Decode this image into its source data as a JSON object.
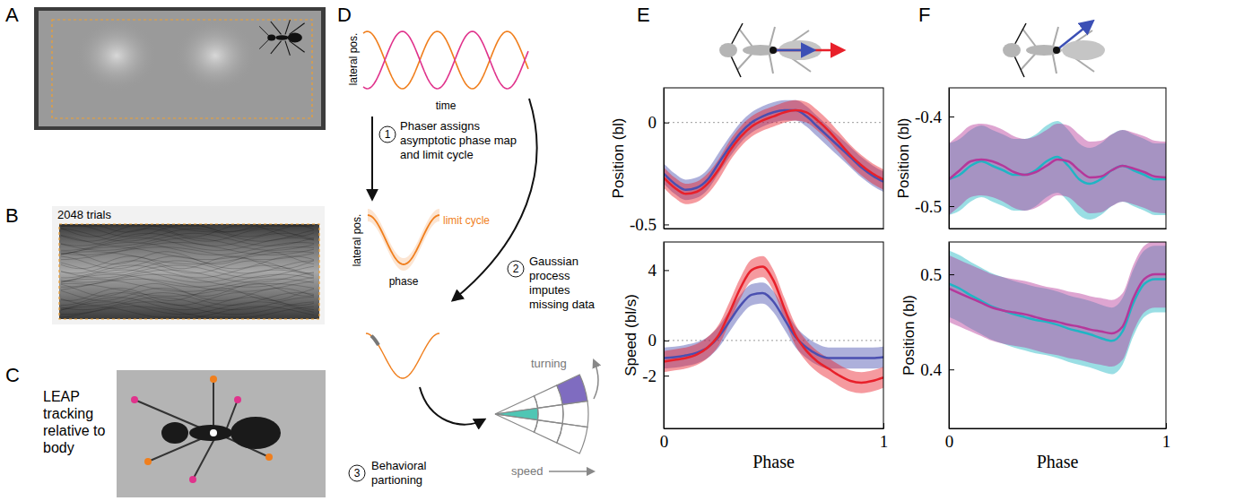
{
  "panel_labels": [
    "A",
    "B",
    "C",
    "D",
    "E",
    "F"
  ],
  "images": {
    "B_caption": "2048 trials",
    "C_caption": "LEAP tracking relative to body"
  },
  "diagram": {
    "top_plot": {
      "y_label": "lateral pos.",
      "x_label": "time"
    },
    "steps": [
      {
        "number": 1,
        "text": "Phaser assigns asymptotic phase map and limit cycle"
      },
      {
        "number": 2,
        "text": "Gaussian process imputes missing data"
      },
      {
        "number": 3,
        "text": "Behavioral partioning"
      }
    ],
    "middle_plot": {
      "y_label": "lateral pos.",
      "x_label": "phase",
      "curve_label": "limit cycle"
    },
    "fan": {
      "vertical_label": "turning",
      "horizontal_label": "speed"
    }
  },
  "chart_data": [
    {
      "type": "line",
      "ylabel": "Position (bl)",
      "x": [
        0,
        0.05,
        0.1,
        0.15,
        0.2,
        0.25,
        0.3,
        0.35,
        0.4,
        0.45,
        0.5,
        0.55,
        0.6,
        0.65,
        0.7,
        0.75,
        0.8,
        0.85,
        0.9,
        0.95,
        1
      ],
      "xlim": [
        0,
        1
      ],
      "ylim": [
        -0.52,
        0.17
      ],
      "yticks": [
        -0.5,
        0
      ],
      "reference_line": 0,
      "tick_labels": "y",
      "series": [
        {
          "color": "#4a4fb0",
          "values": [
            -0.25,
            -0.3,
            -0.33,
            -0.32,
            -0.28,
            -0.2,
            -0.12,
            -0.05,
            0.0,
            0.03,
            0.05,
            0.06,
            0.06,
            0.03,
            -0.02,
            -0.07,
            -0.12,
            -0.17,
            -0.22,
            -0.26,
            -0.29
          ],
          "error": [
            0.05,
            0.05,
            0.05,
            0.05,
            0.05,
            0.05,
            0.05,
            0.05,
            0.05,
            0.05,
            0.05,
            0.05,
            0.05,
            0.05,
            0.05,
            0.05,
            0.05,
            0.05,
            0.05,
            0.05,
            0.05
          ]
        },
        {
          "color": "#e8202a",
          "values": [
            -0.27,
            -0.32,
            -0.35,
            -0.34,
            -0.3,
            -0.23,
            -0.14,
            -0.07,
            -0.02,
            0.01,
            0.03,
            0.05,
            0.06,
            0.05,
            0.01,
            -0.04,
            -0.1,
            -0.16,
            -0.21,
            -0.25,
            -0.28
          ],
          "error": [
            0.05,
            0.05,
            0.05,
            0.05,
            0.05,
            0.05,
            0.05,
            0.05,
            0.05,
            0.05,
            0.05,
            0.05,
            0.05,
            0.05,
            0.05,
            0.05,
            0.05,
            0.05,
            0.05,
            0.05,
            0.05
          ]
        }
      ]
    },
    {
      "type": "line",
      "ylabel": "Speed (bl/s)",
      "xlabel": "Phase",
      "x": [
        0,
        0.05,
        0.1,
        0.15,
        0.2,
        0.25,
        0.3,
        0.35,
        0.4,
        0.45,
        0.5,
        0.55,
        0.6,
        0.65,
        0.7,
        0.75,
        0.8,
        0.85,
        0.9,
        0.95,
        1
      ],
      "xlim": [
        0,
        1
      ],
      "xticks": [
        0,
        1
      ],
      "ylim": [
        -5,
        5.6
      ],
      "yticks": [
        -2,
        0,
        4
      ],
      "reference_line": 0,
      "series": [
        {
          "color": "#4a4fb0",
          "values": [
            -1.0,
            -0.95,
            -0.85,
            -0.7,
            -0.4,
            0.2,
            1.1,
            2.0,
            2.6,
            2.7,
            2.2,
            1.2,
            0.2,
            -0.4,
            -0.8,
            -1.0,
            -1.0,
            -1.0,
            -1.0,
            -1.0,
            -0.95
          ],
          "error": [
            0.6,
            0.6,
            0.6,
            0.6,
            0.6,
            0.6,
            0.6,
            0.6,
            0.6,
            0.6,
            0.6,
            0.6,
            0.6,
            0.6,
            0.6,
            0.6,
            0.6,
            0.6,
            0.6,
            0.6,
            0.6
          ]
        },
        {
          "color": "#e8202a",
          "values": [
            -1.2,
            -1.1,
            -1.0,
            -0.8,
            -0.4,
            0.3,
            1.6,
            3.0,
            4.0,
            4.2,
            3.4,
            1.8,
            0.3,
            -0.6,
            -1.2,
            -1.6,
            -2.0,
            -2.3,
            -2.4,
            -2.3,
            -2.1
          ],
          "error": [
            0.6,
            0.6,
            0.6,
            0.6,
            0.6,
            0.6,
            0.6,
            0.6,
            0.6,
            0.6,
            0.6,
            0.6,
            0.6,
            0.6,
            0.6,
            0.6,
            0.6,
            0.6,
            0.6,
            0.6,
            0.6
          ]
        }
      ]
    },
    {
      "type": "line",
      "ylabel": "Position (bl)",
      "x": [
        0,
        0.05,
        0.1,
        0.15,
        0.2,
        0.25,
        0.3,
        0.35,
        0.4,
        0.45,
        0.5,
        0.55,
        0.6,
        0.65,
        0.7,
        0.75,
        0.8,
        0.85,
        0.9,
        0.95,
        1
      ],
      "xlim": [
        0,
        1
      ],
      "ylim": [
        -0.525,
        -0.368
      ],
      "yticks": [
        -0.5,
        -0.4
      ],
      "tick_labels": "y",
      "series": [
        {
          "color": "#1fb5c4",
          "values": [
            -0.47,
            -0.465,
            -0.455,
            -0.45,
            -0.455,
            -0.46,
            -0.465,
            -0.465,
            -0.46,
            -0.45,
            -0.445,
            -0.455,
            -0.47,
            -0.475,
            -0.47,
            -0.46,
            -0.455,
            -0.46,
            -0.465,
            -0.47,
            -0.47
          ],
          "error": [
            0.04,
            0.04,
            0.04,
            0.04,
            0.04,
            0.04,
            0.04,
            0.04,
            0.04,
            0.04,
            0.04,
            0.04,
            0.04,
            0.04,
            0.04,
            0.04,
            0.04,
            0.04,
            0.04,
            0.04,
            0.04
          ]
        },
        {
          "color": "#b5379a",
          "values": [
            -0.47,
            -0.46,
            -0.45,
            -0.448,
            -0.45,
            -0.455,
            -0.462,
            -0.465,
            -0.462,
            -0.455,
            -0.448,
            -0.45,
            -0.46,
            -0.468,
            -0.467,
            -0.46,
            -0.455,
            -0.458,
            -0.462,
            -0.467,
            -0.468
          ],
          "error": [
            0.04,
            0.04,
            0.04,
            0.04,
            0.04,
            0.04,
            0.04,
            0.04,
            0.04,
            0.04,
            0.04,
            0.04,
            0.04,
            0.04,
            0.04,
            0.04,
            0.04,
            0.04,
            0.04,
            0.04,
            0.04
          ]
        }
      ]
    },
    {
      "type": "line",
      "ylabel": "Position (bl)",
      "xlabel": "Phase",
      "x": [
        0,
        0.05,
        0.1,
        0.15,
        0.2,
        0.25,
        0.3,
        0.35,
        0.4,
        0.45,
        0.5,
        0.55,
        0.6,
        0.65,
        0.7,
        0.75,
        0.8,
        0.85,
        0.9,
        0.95,
        1
      ],
      "xlim": [
        0,
        1
      ],
      "xticks": [
        0,
        1
      ],
      "ylim": [
        0.338,
        0.534
      ],
      "yticks": [
        0.4,
        0.5
      ],
      "series": [
        {
          "color": "#1fb5c4",
          "values": [
            0.49,
            0.485,
            0.478,
            0.472,
            0.466,
            0.462,
            0.458,
            0.455,
            0.452,
            0.45,
            0.447,
            0.443,
            0.44,
            0.437,
            0.433,
            0.43,
            0.44,
            0.47,
            0.49,
            0.495,
            0.495
          ],
          "error": [
            0.035,
            0.035,
            0.035,
            0.035,
            0.035,
            0.035,
            0.035,
            0.035,
            0.035,
            0.035,
            0.035,
            0.035,
            0.035,
            0.035,
            0.035,
            0.035,
            0.035,
            0.035,
            0.035,
            0.035,
            0.035
          ]
        },
        {
          "color": "#b5379a",
          "values": [
            0.485,
            0.48,
            0.475,
            0.47,
            0.465,
            0.462,
            0.46,
            0.458,
            0.455,
            0.452,
            0.45,
            0.447,
            0.445,
            0.442,
            0.44,
            0.438,
            0.445,
            0.475,
            0.495,
            0.5,
            0.5
          ],
          "error": [
            0.035,
            0.035,
            0.035,
            0.035,
            0.035,
            0.035,
            0.035,
            0.035,
            0.035,
            0.035,
            0.035,
            0.035,
            0.035,
            0.035,
            0.035,
            0.035,
            0.035,
            0.035,
            0.035,
            0.035,
            0.035
          ]
        }
      ]
    }
  ]
}
